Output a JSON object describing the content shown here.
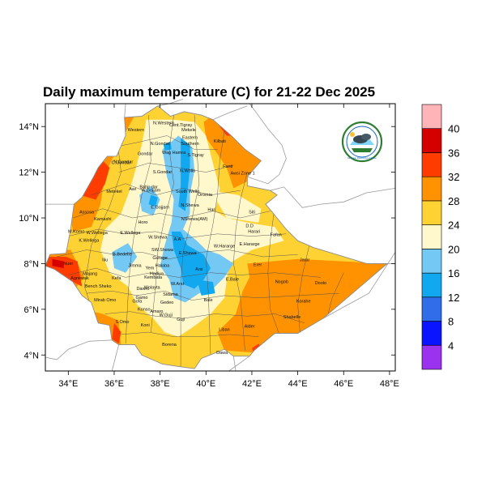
{
  "title": "Daily maximum temperature (C) for 21-22 Dec 2025",
  "axes": {
    "lon_ticks": [
      "34°E",
      "36°E",
      "38°E",
      "40°E",
      "42°E",
      "44°E",
      "46°E",
      "48°E"
    ],
    "lat_ticks": [
      "14°N",
      "12°N",
      "10°N",
      "8°N",
      "6°N",
      "4°N"
    ]
  },
  "colorbar": {
    "labels": [
      "4",
      "8",
      "12",
      "16",
      "20",
      "24",
      "28",
      "32",
      "36",
      "40"
    ],
    "colors": [
      "#9a32f0",
      "#0a14ff",
      "#2f6ee8",
      "#12a8f0",
      "#74c8f4",
      "#fff8cc",
      "#ffd234",
      "#ff9200",
      "#ff3c00",
      "#d40000",
      "#ffb4b8"
    ]
  },
  "palette": {
    "bg": "#ffffff",
    "border": "#999999",
    "admin": "#555555",
    "sea": "#ffffff"
  },
  "logo": {
    "description_icon": "ethiopian-meteorology-logo-icon",
    "arc_text": "Ethiopian Meteorology Institute"
  },
  "regions": [
    {
      "name": "N.Western",
      "lon": 38.15,
      "lat": 14.1
    },
    {
      "name": "Cent.Tigray",
      "lon": 38.9,
      "lat": 14.0
    },
    {
      "name": "Western",
      "lon": 36.95,
      "lat": 13.8
    },
    {
      "name": "Eastern",
      "lon": 39.3,
      "lat": 13.45
    },
    {
      "name": "Mekele",
      "lon": 39.25,
      "lat": 13.8
    },
    {
      "name": "Kilbati",
      "lon": 40.6,
      "lat": 13.3
    },
    {
      "name": "N.Gondar",
      "lon": 38.0,
      "lat": 13.2
    },
    {
      "name": "Southern",
      "lon": 39.3,
      "lat": 13.2
    },
    {
      "name": "Gondar",
      "lon": 37.35,
      "lat": 12.75
    },
    {
      "name": "Wag Hamra",
      "lon": 38.6,
      "lat": 12.8
    },
    {
      "name": "S.Tigray",
      "lon": 39.55,
      "lat": 12.7
    },
    {
      "name": "N.Gondar",
      "lon": 36.4,
      "lat": 12.4
    },
    {
      "name": "Fanti",
      "lon": 40.95,
      "lat": 12.2
    },
    {
      "name": "C.Gondar",
      "lon": 36.3,
      "lat": 12.35
    },
    {
      "name": "S.Gondar",
      "lon": 38.1,
      "lat": 11.95
    },
    {
      "name": "N.Wollo",
      "lon": 39.2,
      "lat": 12.0
    },
    {
      "name": "Awsi Zone 1",
      "lon": 41.6,
      "lat": 11.9
    },
    {
      "name": "Awi",
      "lon": 36.8,
      "lat": 11.2
    },
    {
      "name": "Bahir dar",
      "lon": 37.5,
      "lat": 11.3
    },
    {
      "name": "Metekel",
      "lon": 36.0,
      "lat": 11.1
    },
    {
      "name": "W.Gojjam",
      "lon": 37.6,
      "lat": 11.15
    },
    {
      "name": "South Wello",
      "lon": 39.2,
      "lat": 11.1
    },
    {
      "name": "Oromia",
      "lon": 39.95,
      "lat": 10.95
    },
    {
      "name": "E.Gojjam",
      "lon": 38.0,
      "lat": 10.4
    },
    {
      "name": "N.Shewa",
      "lon": 39.3,
      "lat": 10.5
    },
    {
      "name": "Hari",
      "lon": 40.25,
      "lat": 10.3
    },
    {
      "name": "Siti",
      "lon": 42.0,
      "lat": 10.2
    },
    {
      "name": "Assosa",
      "lon": 34.8,
      "lat": 10.2
    },
    {
      "name": "Kamashi",
      "lon": 35.5,
      "lat": 9.9
    },
    {
      "name": "NShewa(AM)",
      "lon": 39.5,
      "lat": 9.9
    },
    {
      "name": "D.D",
      "lon": 41.9,
      "lat": 9.6
    },
    {
      "name": "Horo",
      "lon": 37.25,
      "lat": 9.75
    },
    {
      "name": "Harari",
      "lon": 42.1,
      "lat": 9.35
    },
    {
      "name": "Fafan",
      "lon": 43.05,
      "lat": 9.2
    },
    {
      "name": "M.Komo",
      "lon": 34.35,
      "lat": 9.35
    },
    {
      "name": "W.Wellega",
      "lon": 35.25,
      "lat": 9.3
    },
    {
      "name": "E.Wellega",
      "lon": 36.7,
      "lat": 9.3
    },
    {
      "name": "W.Shewa",
      "lon": 37.9,
      "lat": 9.1
    },
    {
      "name": "K.Wellega",
      "lon": 34.9,
      "lat": 8.95
    },
    {
      "name": "A.A",
      "lon": 38.75,
      "lat": 9.0
    },
    {
      "name": "W.Hararge",
      "lon": 40.8,
      "lat": 8.7
    },
    {
      "name": "E.Hararge",
      "lon": 41.9,
      "lat": 8.8
    },
    {
      "name": "B.Bedelle",
      "lon": 36.35,
      "lat": 8.35
    },
    {
      "name": "SW.Shewa",
      "lon": 38.1,
      "lat": 8.55
    },
    {
      "name": "E.Shewa",
      "lon": 39.2,
      "lat": 8.4
    },
    {
      "name": "Jarar",
      "lon": 44.3,
      "lat": 8.1
    },
    {
      "name": "Iliu",
      "lon": 35.6,
      "lat": 8.1
    },
    {
      "name": "Jimma",
      "lon": 36.9,
      "lat": 7.85
    },
    {
      "name": "Gurage",
      "lon": 38.0,
      "lat": 8.2
    },
    {
      "name": "Erer",
      "lon": 42.25,
      "lat": 7.9
    },
    {
      "name": "Yem",
      "lon": 37.55,
      "lat": 7.75
    },
    {
      "name": "Halaba",
      "lon": 38.1,
      "lat": 7.85
    },
    {
      "name": "Majang",
      "lon": 34.95,
      "lat": 7.5
    },
    {
      "name": "Hadiya",
      "lon": 37.85,
      "lat": 7.5
    },
    {
      "name": "Arsi",
      "lon": 39.7,
      "lat": 7.7
    },
    {
      "name": "Nuer",
      "lon": 34.0,
      "lat": 7.95
    },
    {
      "name": "Kefa",
      "lon": 36.1,
      "lat": 7.3
    },
    {
      "name": "Kembata",
      "lon": 37.7,
      "lat": 7.35
    },
    {
      "name": "W.Arsi",
      "lon": 38.75,
      "lat": 7.05
    },
    {
      "name": "E.Bale",
      "lon": 41.15,
      "lat": 7.25
    },
    {
      "name": "Nogob",
      "lon": 43.3,
      "lat": 7.15
    },
    {
      "name": "Doolo",
      "lon": 45.0,
      "lat": 7.1
    },
    {
      "name": "Agnewak",
      "lon": 34.5,
      "lat": 7.3
    },
    {
      "name": "Bench Sheko",
      "lon": 35.3,
      "lat": 6.95
    },
    {
      "name": "Wolayta",
      "lon": 37.65,
      "lat": 6.9
    },
    {
      "name": "Sidama",
      "lon": 38.45,
      "lat": 6.6
    },
    {
      "name": "Dawro",
      "lon": 37.25,
      "lat": 6.85
    },
    {
      "name": "Gamo",
      "lon": 37.2,
      "lat": 6.45
    },
    {
      "name": "Mirab Omo",
      "lon": 35.6,
      "lat": 6.35
    },
    {
      "name": "Gofa",
      "lon": 37.0,
      "lat": 6.3
    },
    {
      "name": "Gedeo",
      "lon": 38.3,
      "lat": 6.25
    },
    {
      "name": "Bale",
      "lon": 40.1,
      "lat": 6.35
    },
    {
      "name": "Korahe",
      "lon": 44.25,
      "lat": 6.3
    },
    {
      "name": "Konso",
      "lon": 37.3,
      "lat": 5.95
    },
    {
      "name": "Amaro",
      "lon": 37.85,
      "lat": 5.85
    },
    {
      "name": "W.Guji",
      "lon": 38.25,
      "lat": 5.7
    },
    {
      "name": "Guji",
      "lon": 38.9,
      "lat": 5.5
    },
    {
      "name": "Shabelle",
      "lon": 43.75,
      "lat": 5.6
    },
    {
      "name": "S.Omo",
      "lon": 36.35,
      "lat": 5.4
    },
    {
      "name": "Koni",
      "lon": 37.35,
      "lat": 5.25
    },
    {
      "name": "Alder",
      "lon": 41.9,
      "lat": 5.2
    },
    {
      "name": "Liban",
      "lon": 40.8,
      "lat": 5.05
    },
    {
      "name": "Borena",
      "lon": 38.4,
      "lat": 4.4
    },
    {
      "name": "Dawa",
      "lon": 40.7,
      "lat": 4.05
    }
  ]
}
